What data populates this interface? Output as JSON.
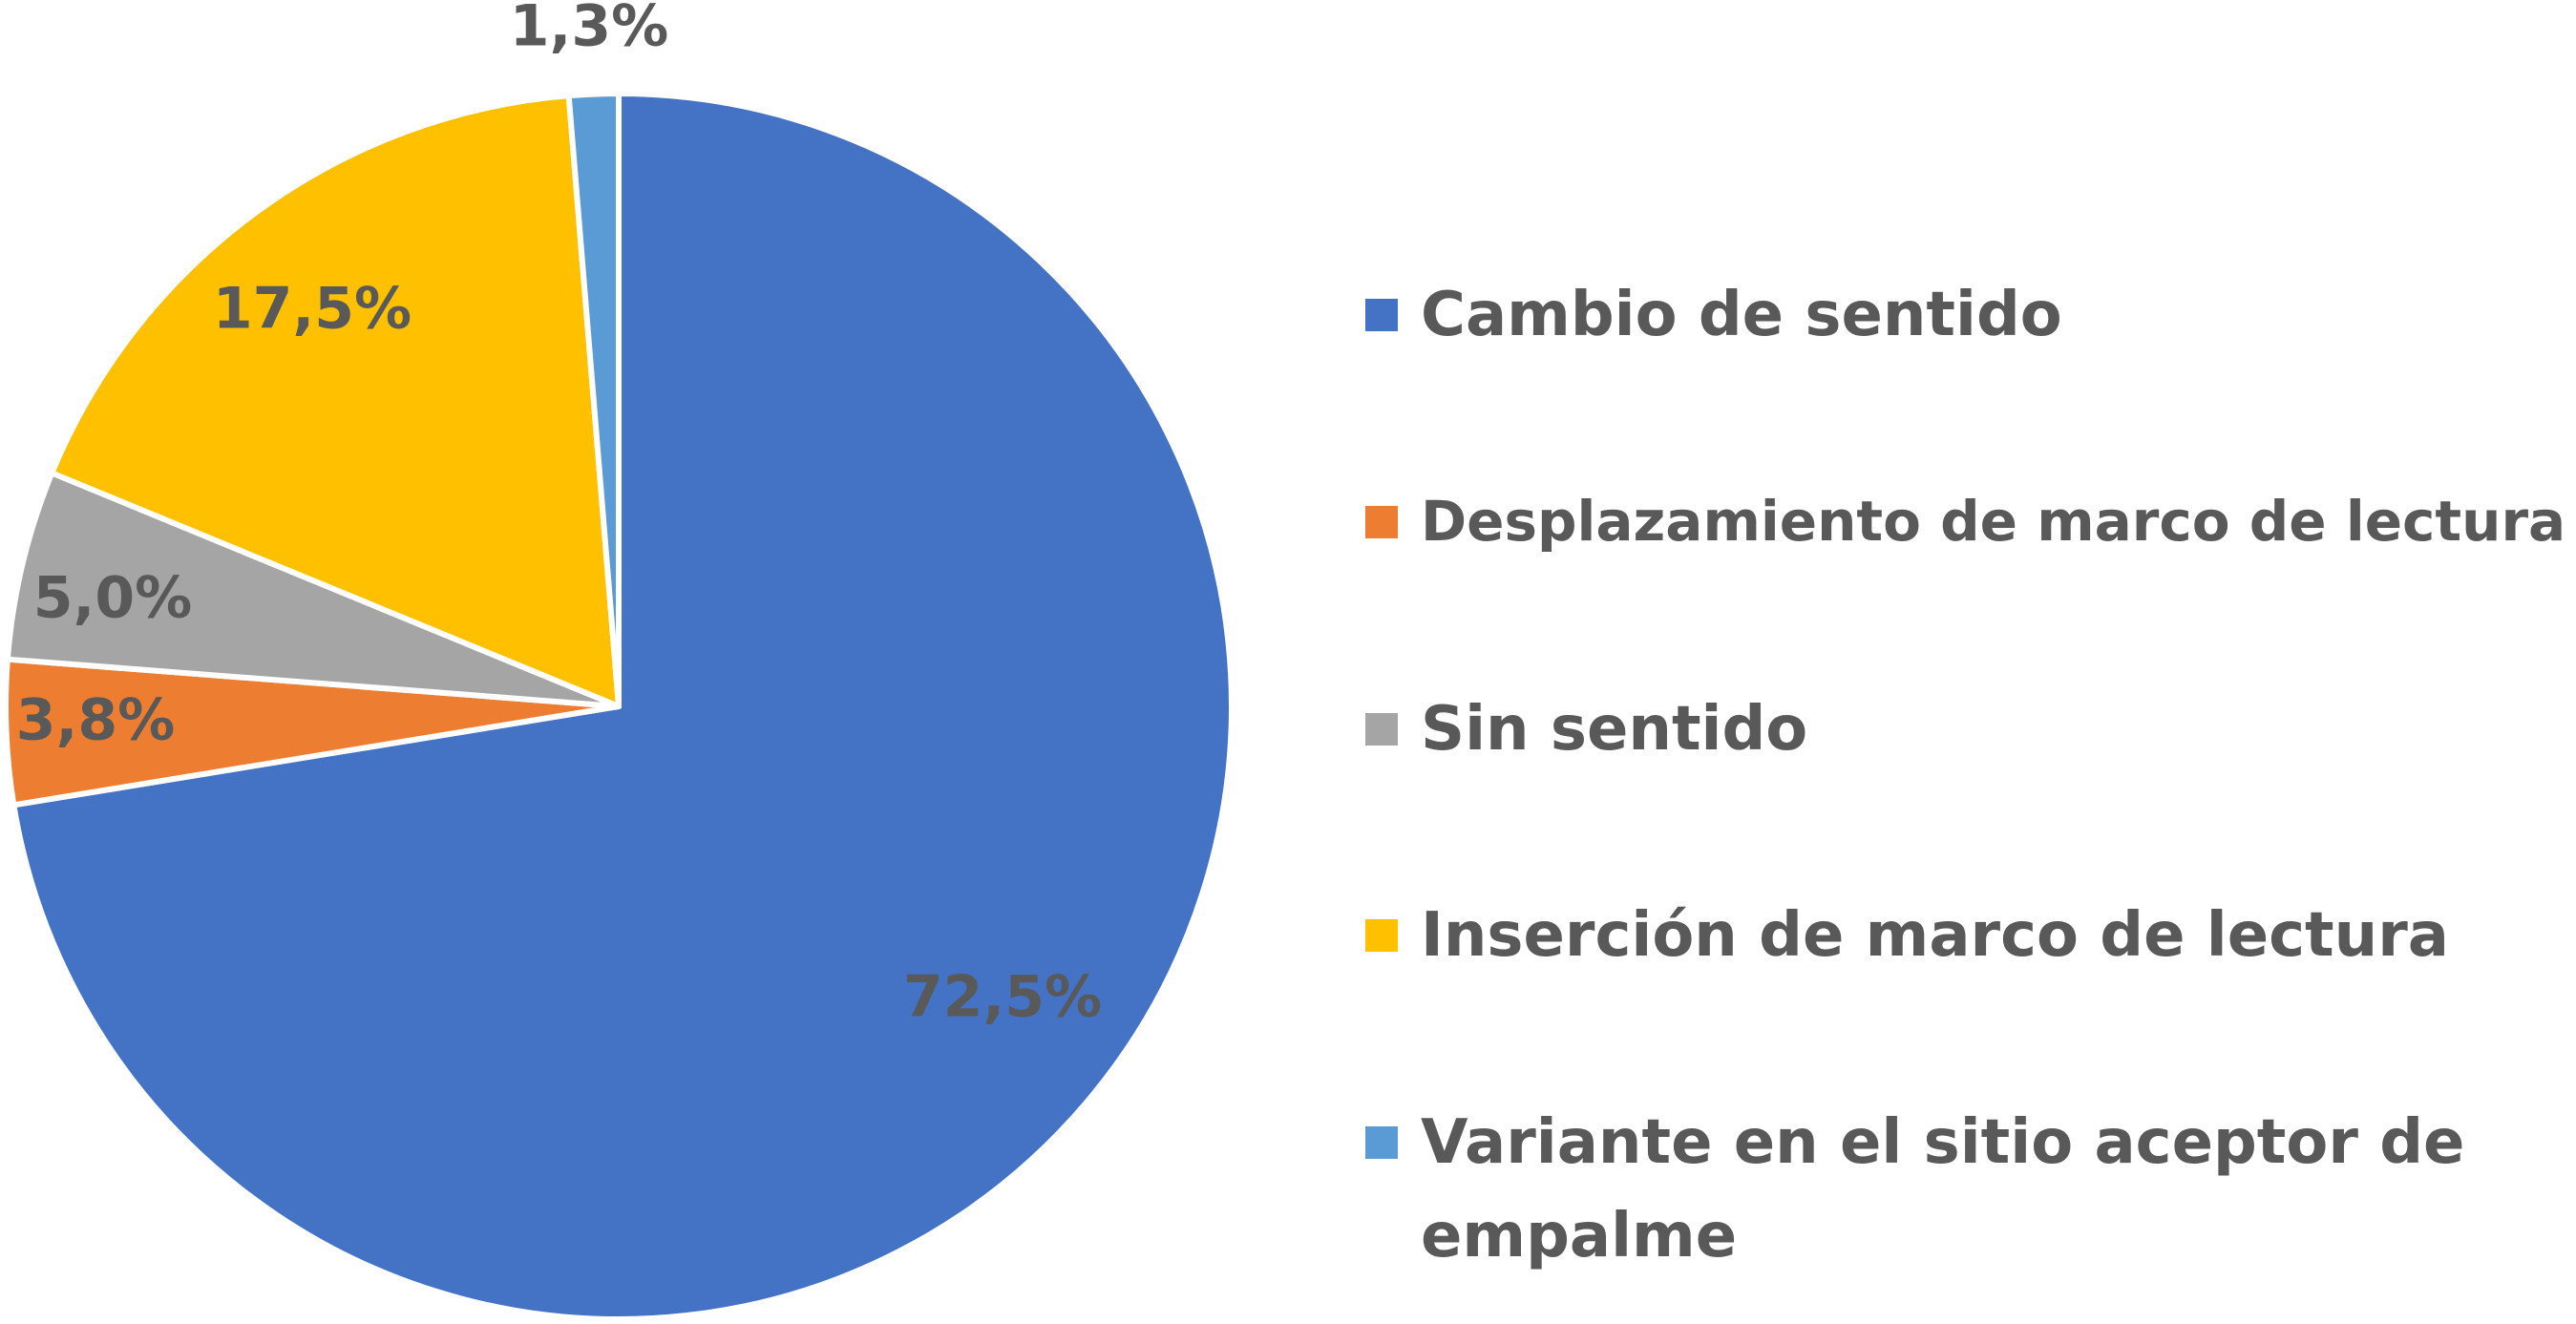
{
  "chart_data": {
    "type": "pie",
    "title": "",
    "start_angle_deg": 0,
    "direction": "clockwise",
    "legend_position": "right",
    "label_color": "#595959",
    "legend_text_color": "#595959",
    "slice_border_color": "#ffffff",
    "slices": [
      {
        "label": "Cambio de sentido",
        "value": 72.5,
        "value_label": "72,5%",
        "color": "#4472C4"
      },
      {
        "label": "Desplazamiento de marco de lectura",
        "value": 3.8,
        "value_label": "3,8%",
        "color": "#ED7D31"
      },
      {
        "label": "Sin sentido",
        "value": 5.0,
        "value_label": "5,0%",
        "color": "#A5A5A5"
      },
      {
        "label": "Inserción de marco de lectura",
        "value": 17.5,
        "value_label": "17,5%",
        "color": "#FFC000"
      },
      {
        "label": "Variante en el sitio aceptor de empalme",
        "value": 1.3,
        "value_label": "1,3%",
        "color": "#5B9BD5",
        "legend_lines": [
          "Variante en el sitio aceptor de",
          "empalme"
        ]
      }
    ]
  }
}
